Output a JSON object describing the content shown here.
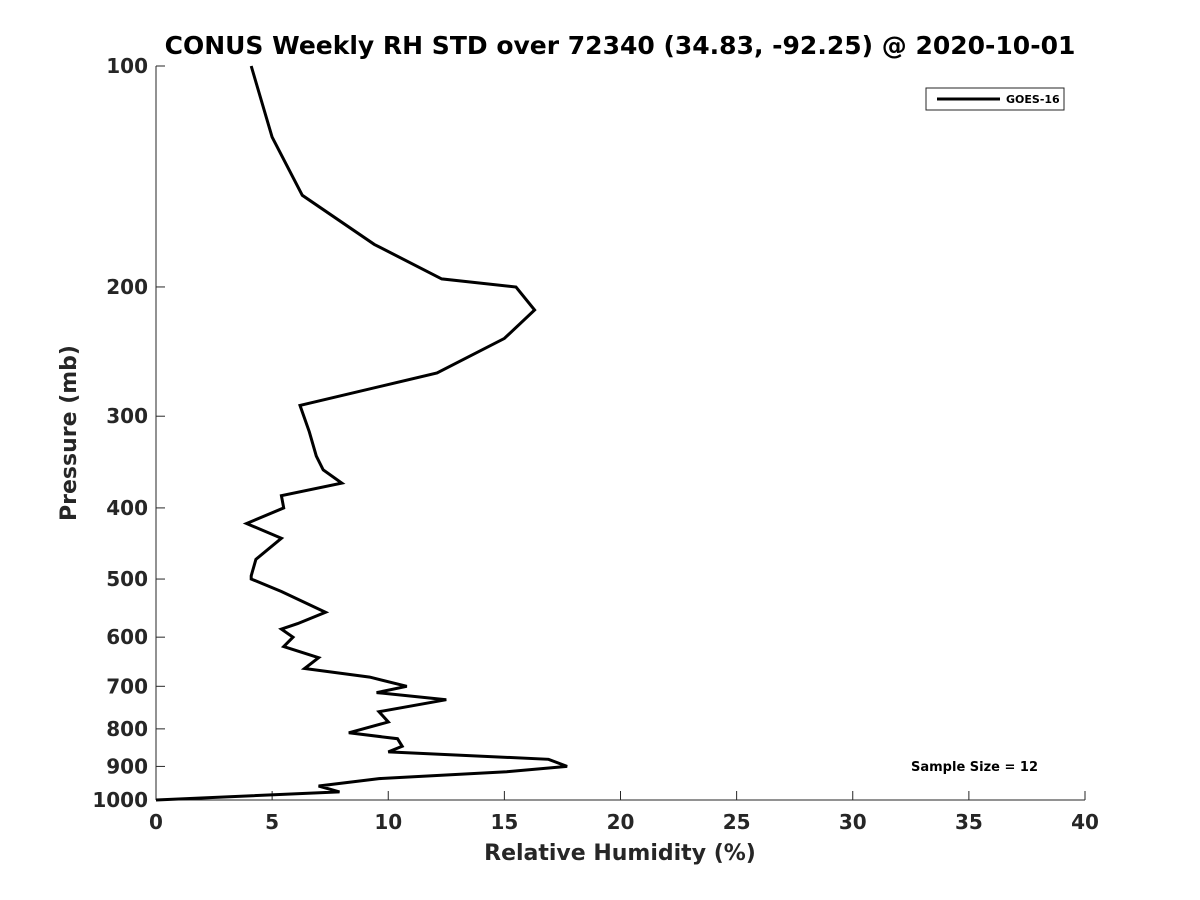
{
  "chart_data": {
    "type": "line",
    "title": "CONUS Weekly RH STD over 72340 (34.83, -92.25) @ 2020-10-01",
    "xlabel": "Relative Humidity (%)",
    "ylabel": "Pressure (mb)",
    "xlim": [
      0,
      40
    ],
    "ylim": [
      100,
      1000
    ],
    "y_scale": "log",
    "y_reversed": true,
    "x_ticks": [
      0,
      5,
      10,
      15,
      20,
      25,
      30,
      35,
      40
    ],
    "y_ticks": [
      100,
      200,
      300,
      400,
      500,
      600,
      700,
      800,
      900,
      1000
    ],
    "grid": false,
    "legend_position": "top-right",
    "series": [
      {
        "name": "GOES-16",
        "color": "#000000",
        "points": [
          [
            4.1,
            100
          ],
          [
            5.0,
            125
          ],
          [
            6.3,
            150
          ],
          [
            9.4,
            175
          ],
          [
            12.3,
            195
          ],
          [
            15.5,
            200
          ],
          [
            16.3,
            215
          ],
          [
            15.0,
            235
          ],
          [
            12.1,
            262
          ],
          [
            6.2,
            290
          ],
          [
            6.6,
            315
          ],
          [
            6.9,
            340
          ],
          [
            7.2,
            355
          ],
          [
            8.0,
            370
          ],
          [
            5.4,
            385
          ],
          [
            5.5,
            400
          ],
          [
            3.9,
            420
          ],
          [
            5.4,
            440
          ],
          [
            4.3,
            470
          ],
          [
            4.1,
            495
          ],
          [
            4.1,
            500
          ],
          [
            5.4,
            520
          ],
          [
            7.3,
            555
          ],
          [
            6.1,
            575
          ],
          [
            5.4,
            585
          ],
          [
            5.9,
            600
          ],
          [
            5.5,
            618
          ],
          [
            7.0,
            640
          ],
          [
            6.4,
            662
          ],
          [
            9.2,
            680
          ],
          [
            10.8,
            700
          ],
          [
            9.5,
            714
          ],
          [
            12.5,
            730
          ],
          [
            9.6,
            758
          ],
          [
            10.0,
            783
          ],
          [
            8.3,
            810
          ],
          [
            10.4,
            825
          ],
          [
            10.6,
            845
          ],
          [
            10.0,
            860
          ],
          [
            16.9,
            880
          ],
          [
            17.7,
            900
          ],
          [
            15.1,
            915
          ],
          [
            9.6,
            935
          ],
          [
            7.0,
            957
          ],
          [
            7.9,
            975
          ],
          [
            0.0,
            1000
          ]
        ]
      }
    ],
    "annotations": [
      "Sample Size = 12"
    ]
  }
}
